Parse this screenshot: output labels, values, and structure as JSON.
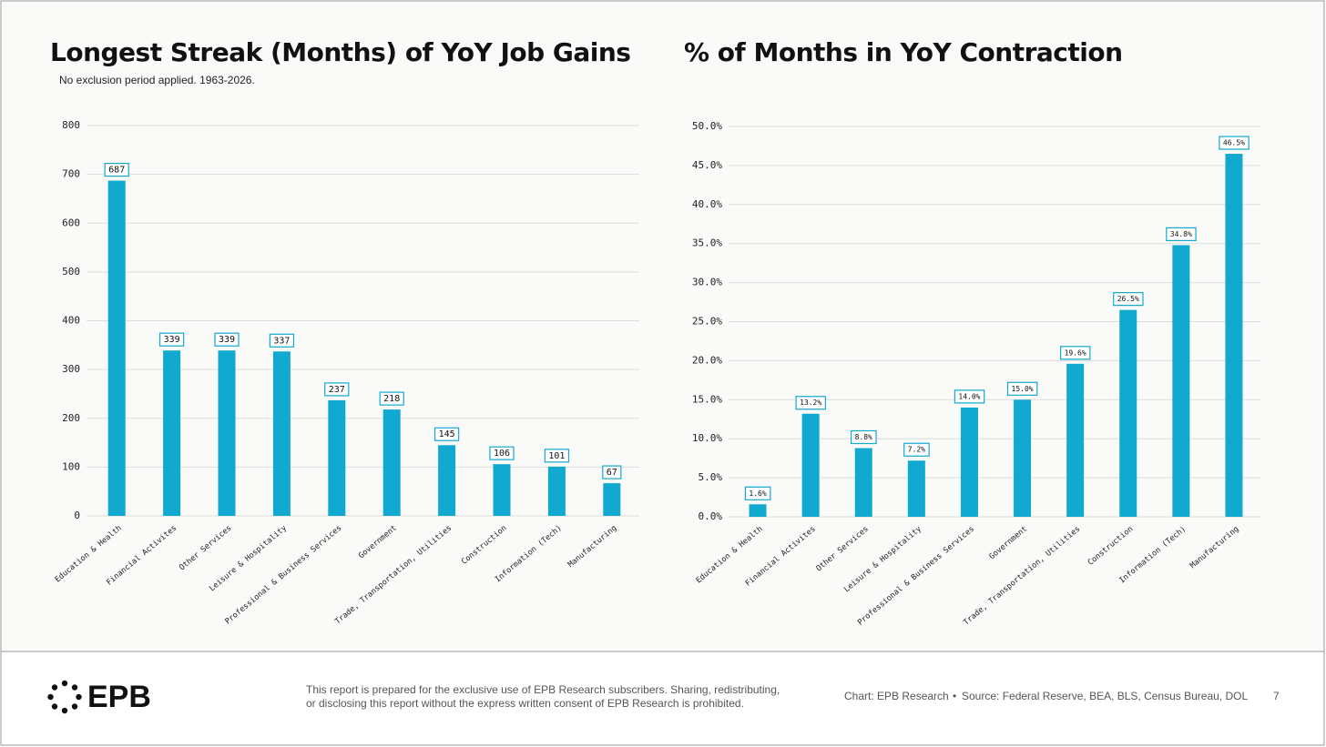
{
  "chart_data": [
    {
      "type": "bar",
      "title": "Longest Streak (Months) of YoY Job Gains",
      "subtitle": "No exclusion period applied. 1963-2026.",
      "categories": [
        "Education & Health",
        "Financial Activites",
        "Other Services",
        "Leisure & Hospitality",
        "Professional & Business Services",
        "Government",
        "Trade, Transportation, Utilities",
        "Construction",
        "Information (Tech)",
        "Manufacturing"
      ],
      "values": [
        687,
        339,
        339,
        337,
        237,
        218,
        145,
        106,
        101,
        67
      ],
      "color": "#12a9d1",
      "ylim": [
        0,
        800
      ],
      "yticks": [
        0,
        100,
        200,
        300,
        400,
        500,
        600,
        700,
        800
      ],
      "grid": true
    },
    {
      "type": "bar",
      "title": "% of Months in YoY Contraction",
      "categories": [
        "Education & Health",
        "Financial Activites",
        "Other Services",
        "Leisure & Hospitality",
        "Professional & Business Services",
        "Government",
        "Trade, Transportation, Utilities",
        "Construction",
        "Information (Tech)",
        "Manufacturing"
      ],
      "values": [
        1.6,
        13.2,
        8.8,
        7.2,
        14.0,
        15.0,
        19.6,
        26.5,
        34.8,
        46.5
      ],
      "value_labels": [
        "1.6%",
        "13.2%",
        "8.8%",
        "7.2%",
        "14.0%",
        "15.0%",
        "19.6%",
        "26.5%",
        "34.8%",
        "46.5%"
      ],
      "color": "#12a9d1",
      "ylim": [
        0,
        50
      ],
      "yticks": [
        {
          "value": 0,
          "label": "0.0%"
        },
        {
          "value": 5,
          "label": "5.0%"
        },
        {
          "value": 10,
          "label": "10.0%"
        },
        {
          "value": 15,
          "label": "15.0%"
        },
        {
          "value": 20,
          "label": "20.0%"
        },
        {
          "value": 25,
          "label": "25.0%"
        },
        {
          "value": 30,
          "label": "30.0%"
        },
        {
          "value": 35,
          "label": "35.0%"
        },
        {
          "value": 40,
          "label": "40.0%"
        },
        {
          "value": 45,
          "label": "45.0%"
        },
        {
          "value": 50,
          "label": "50.0%"
        }
      ],
      "grid": true
    }
  ],
  "footer": {
    "logo": "EPB",
    "disclaimer": [
      "This report is prepared for the exclusive use of EPB Research subscribers. Sharing, redistributing,",
      "or disclosing this report without the express written consent of EPB Research is prohibited."
    ],
    "chart_credit": "Chart: EPB Research",
    "source": "Source: Federal Reserve, BEA, BLS, Census Bureau, DOL",
    "page": "7"
  }
}
